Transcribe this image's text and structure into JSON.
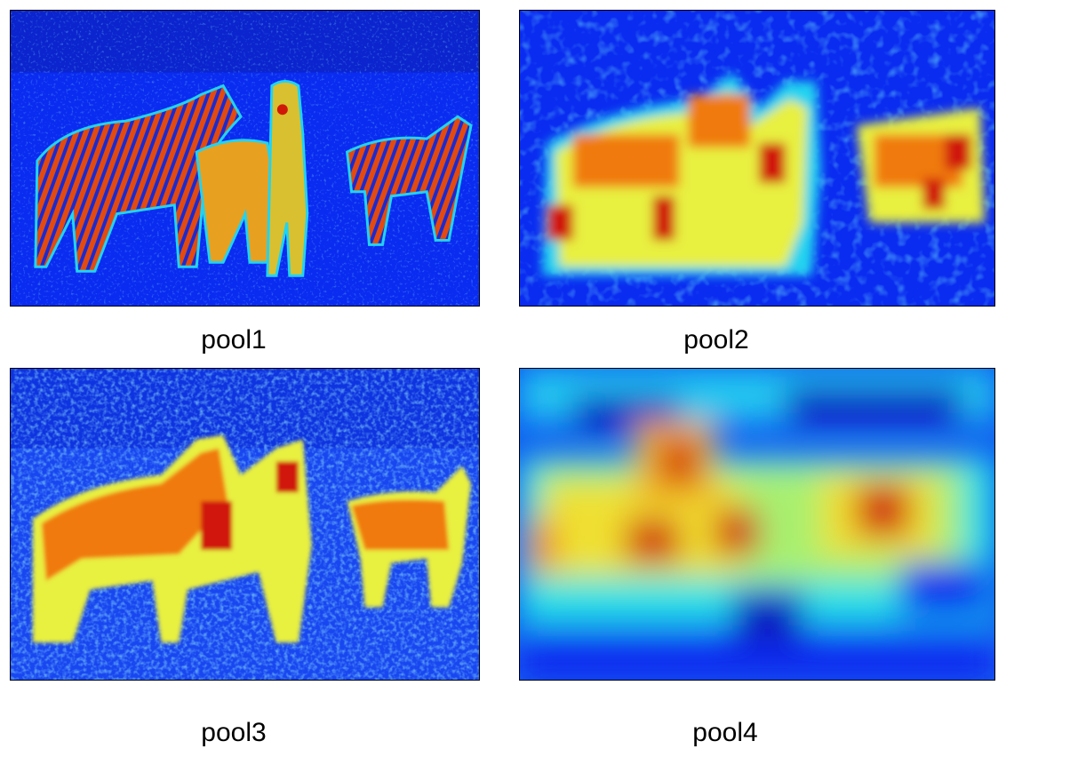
{
  "panels": [
    {
      "caption": "pool1",
      "content": "zebra-feature-map"
    },
    {
      "caption": "pool2",
      "content": "zebra-feature-map"
    },
    {
      "caption": "pool3",
      "content": "zebra-feature-map"
    },
    {
      "caption": "pool4",
      "content": "zebra-feature-map"
    }
  ],
  "colors": {
    "background_low": "#0a2bf0",
    "mid_cyan": "#22d3f0",
    "mid_yellow": "#e8f040",
    "high_orange": "#f07a10",
    "peak_red": "#d01808"
  }
}
